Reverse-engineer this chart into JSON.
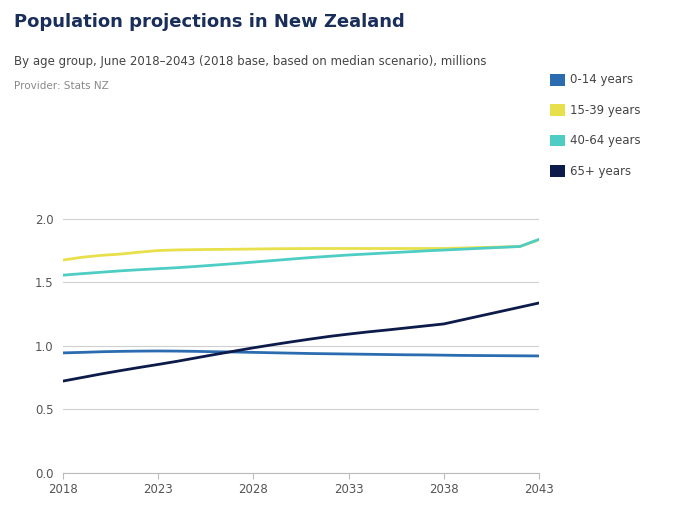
{
  "title": "Population projections in New Zealand",
  "subtitle": "By age group, June 2018–2043 (2018 base, based on median scenario), millions",
  "provider": "Provider: Stats NZ",
  "years": [
    2018,
    2019,
    2020,
    2021,
    2022,
    2023,
    2024,
    2025,
    2026,
    2027,
    2028,
    2029,
    2030,
    2031,
    2032,
    2033,
    2034,
    2035,
    2036,
    2037,
    2038,
    2039,
    2040,
    2041,
    2042,
    2043
  ],
  "series": {
    "0-14 years": {
      "color": "#2b6cb0",
      "values": [
        0.942,
        0.946,
        0.951,
        0.954,
        0.956,
        0.957,
        0.956,
        0.954,
        0.951,
        0.949,
        0.946,
        0.943,
        0.94,
        0.937,
        0.935,
        0.933,
        0.931,
        0.929,
        0.927,
        0.926,
        0.924,
        0.922,
        0.921,
        0.92,
        0.919,
        0.918
      ]
    },
    "15-39 years": {
      "color": "#e8e04a",
      "values": [
        1.673,
        1.695,
        1.71,
        1.72,
        1.735,
        1.748,
        1.753,
        1.755,
        1.757,
        1.758,
        1.76,
        1.762,
        1.763,
        1.764,
        1.764,
        1.764,
        1.764,
        1.764,
        1.764,
        1.764,
        1.764,
        1.768,
        1.772,
        1.776,
        1.78,
        1.833
      ]
    },
    "40-64 years": {
      "color": "#4ecdc4",
      "values": [
        1.554,
        1.566,
        1.577,
        1.588,
        1.597,
        1.605,
        1.613,
        1.623,
        1.634,
        1.645,
        1.657,
        1.669,
        1.681,
        1.693,
        1.703,
        1.713,
        1.721,
        1.729,
        1.737,
        1.745,
        1.752,
        1.759,
        1.766,
        1.773,
        1.78,
        1.836
      ]
    },
    "65+ years": {
      "color": "#0d1b4b",
      "values": [
        0.72,
        0.748,
        0.776,
        0.802,
        0.827,
        0.851,
        0.876,
        0.903,
        0.93,
        0.956,
        0.982,
        1.006,
        1.029,
        1.051,
        1.072,
        1.09,
        1.107,
        1.122,
        1.138,
        1.154,
        1.17,
        1.203,
        1.236,
        1.269,
        1.302,
        1.335
      ]
    }
  },
  "xlim": [
    2018,
    2043
  ],
  "ylim": [
    0.0,
    2.15
  ],
  "yticks": [
    0.0,
    0.5,
    1.0,
    1.5,
    2.0
  ],
  "xticks": [
    2018,
    2023,
    2028,
    2033,
    2038,
    2043
  ],
  "grid_color": "#d0d0d0",
  "background_color": "#ffffff",
  "figure_nz_color": "#5b6abf",
  "title_color": "#1a2e5a",
  "subtitle_color": "#444444",
  "provider_color": "#888888",
  "tick_color": "#555555",
  "title_fontsize": 13,
  "subtitle_fontsize": 8.5,
  "provider_fontsize": 7.5,
  "legend_fontsize": 8.5,
  "tick_fontsize": 8.5
}
